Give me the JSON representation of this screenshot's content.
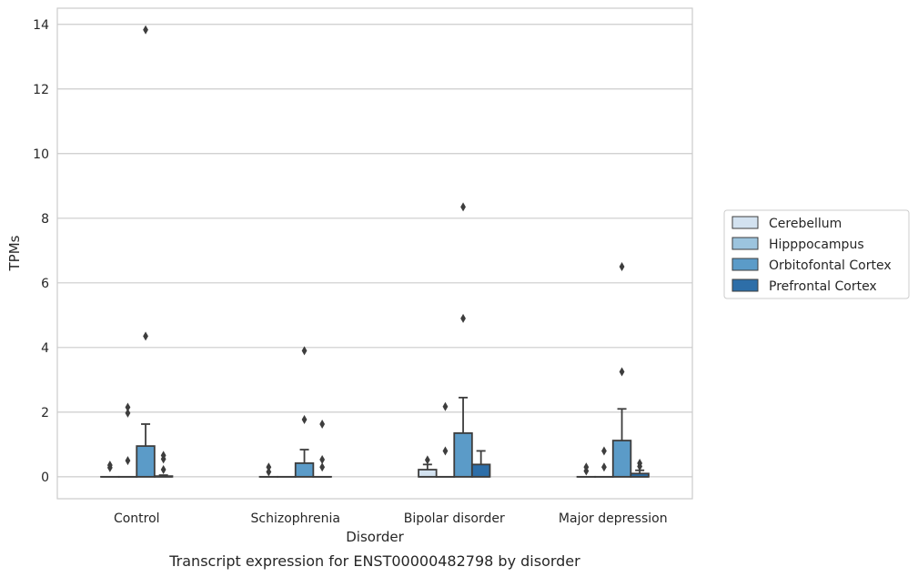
{
  "chart_data": {
    "type": "box",
    "title": "Transcript expression for ENST00000482798 by disorder",
    "xlabel": "Disorder",
    "ylabel": "TPMs",
    "ylim": [
      -0.68,
      14.5
    ],
    "yticks": [
      0,
      2,
      4,
      6,
      8,
      10,
      12,
      14
    ],
    "grid": "horizontal",
    "legend_position": "right",
    "categories": [
      "Control",
      "Schizophrenia",
      "Bipolar disorder",
      "Major depression"
    ],
    "series": [
      {
        "name": "Cerebellum",
        "color": "#d3e2f0",
        "boxes": [
          {
            "q1": 0,
            "median": 0,
            "q3": 0,
            "whisker_low": 0,
            "whisker_high": 0,
            "outliers": [
              0.28,
              0.36
            ]
          },
          {
            "q1": 0,
            "median": 0,
            "q3": 0,
            "whisker_low": 0,
            "whisker_high": 0,
            "outliers": [
              0.15,
              0.3
            ]
          },
          {
            "q1": 0,
            "median": 0,
            "q3": 0.22,
            "whisker_low": 0,
            "whisker_high": 0.38,
            "outliers": [
              0.52
            ]
          },
          {
            "q1": 0,
            "median": 0,
            "q3": 0,
            "whisker_low": 0,
            "whisker_high": 0,
            "outliers": [
              0.18,
              0.3
            ]
          }
        ]
      },
      {
        "name": "Hipppocampus",
        "color": "#9cc4de",
        "boxes": [
          {
            "q1": 0,
            "median": 0,
            "q3": 0,
            "whisker_low": 0,
            "whisker_high": 0,
            "outliers": [
              0.5,
              1.97,
              2.15
            ]
          },
          {
            "q1": 0,
            "median": 0,
            "q3": 0,
            "whisker_low": 0,
            "whisker_high": 0,
            "outliers": []
          },
          {
            "q1": 0,
            "median": 0,
            "q3": 0,
            "whisker_low": 0,
            "whisker_high": 0,
            "outliers": [
              0.8,
              2.17
            ]
          },
          {
            "q1": 0,
            "median": 0,
            "q3": 0,
            "whisker_low": 0,
            "whisker_high": 0,
            "outliers": [
              0.3,
              0.8
            ]
          }
        ]
      },
      {
        "name": "Orbitofontal Cortex",
        "color": "#5b9bc8",
        "boxes": [
          {
            "q1": 0,
            "median": 0,
            "q3": 0.95,
            "whisker_low": 0,
            "whisker_high": 1.63,
            "outliers": [
              4.35,
              13.83
            ]
          },
          {
            "q1": 0,
            "median": 0,
            "q3": 0.42,
            "whisker_low": 0,
            "whisker_high": 0.84,
            "outliers": [
              1.77,
              3.9
            ]
          },
          {
            "q1": 0,
            "median": 0,
            "q3": 1.35,
            "whisker_low": 0,
            "whisker_high": 2.45,
            "outliers": [
              4.9,
              8.35
            ]
          },
          {
            "q1": 0,
            "median": 0,
            "q3": 1.12,
            "whisker_low": 0,
            "whisker_high": 2.1,
            "outliers": [
              3.25,
              6.5
            ]
          }
        ]
      },
      {
        "name": "Prefrontal Cortex",
        "color": "#2d6ea8",
        "boxes": [
          {
            "q1": 0,
            "median": 0,
            "q3": 0.02,
            "whisker_low": 0,
            "whisker_high": 0.05,
            "outliers": [
              0.22,
              0.55,
              0.66
            ]
          },
          {
            "q1": 0,
            "median": 0,
            "q3": 0,
            "whisker_low": 0,
            "whisker_high": 0,
            "outliers": [
              0.3,
              0.53,
              1.63
            ]
          },
          {
            "q1": 0,
            "median": 0,
            "q3": 0.38,
            "whisker_low": 0,
            "whisker_high": 0.8,
            "outliers": []
          },
          {
            "q1": 0,
            "median": 0,
            "q3": 0.1,
            "whisker_low": 0,
            "whisker_high": 0.2,
            "outliers": [
              0.32,
              0.42
            ]
          }
        ]
      }
    ]
  }
}
